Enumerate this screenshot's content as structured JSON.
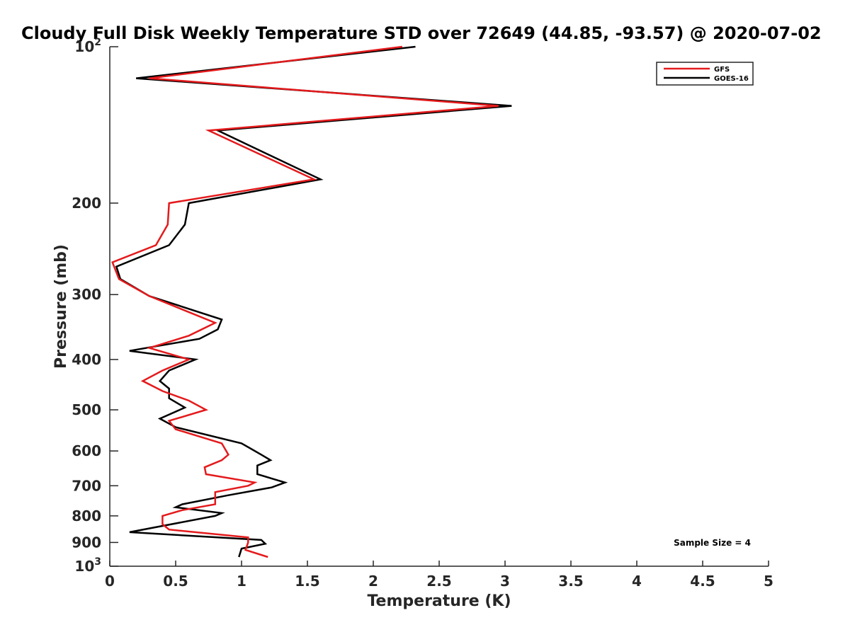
{
  "chart_data": {
    "type": "line",
    "title": "Cloudy Full Disk Weekly Temperature STD over 72649 (44.85, -93.57) @ 2020-07-02",
    "xlabel": "Temperature (K)",
    "ylabel": "Pressure (mb)",
    "xlim": [
      0,
      5
    ],
    "ylim": [
      1000,
      100
    ],
    "yscale": "log",
    "y_reversed": true,
    "xticks": [
      "0",
      "0.5",
      "1",
      "1.5",
      "2",
      "2.5",
      "3",
      "3.5",
      "4",
      "4.5",
      "5"
    ],
    "yticks": [
      {
        "value": 100,
        "base": "10",
        "exp": "2"
      },
      {
        "value": 200,
        "label": "200"
      },
      {
        "value": 300,
        "label": "300"
      },
      {
        "value": 400,
        "label": "400"
      },
      {
        "value": 500,
        "label": "500"
      },
      {
        "value": 600,
        "label": "600"
      },
      {
        "value": 700,
        "label": "700"
      },
      {
        "value": 800,
        "label": "800"
      },
      {
        "value": 900,
        "label": "900"
      },
      {
        "value": 1000,
        "base": "10",
        "exp": "3"
      }
    ],
    "grid": false,
    "legend_position": "top-right",
    "annotation": "Sample Size = 4",
    "series": [
      {
        "name": "GFS",
        "color": "#e41a1c",
        "points": [
          [
            2.22,
            100
          ],
          [
            0.3,
            115
          ],
          [
            2.95,
            130
          ],
          [
            0.75,
            145
          ],
          [
            1.55,
            180
          ],
          [
            0.45,
            200
          ],
          [
            0.44,
            220
          ],
          [
            0.35,
            241
          ],
          [
            0.02,
            260
          ],
          [
            0.07,
            280
          ],
          [
            0.3,
            302
          ],
          [
            0.8,
            340
          ],
          [
            0.6,
            360
          ],
          [
            0.3,
            380
          ],
          [
            0.6,
            400
          ],
          [
            0.4,
            420
          ],
          [
            0.25,
            440
          ],
          [
            0.4,
            460
          ],
          [
            0.6,
            480
          ],
          [
            0.73,
            500
          ],
          [
            0.45,
            525
          ],
          [
            0.5,
            545
          ],
          [
            0.85,
            580
          ],
          [
            0.9,
            610
          ],
          [
            0.85,
            625
          ],
          [
            0.72,
            645
          ],
          [
            0.73,
            665
          ],
          [
            1.1,
            690
          ],
          [
            1.05,
            700
          ],
          [
            0.8,
            720
          ],
          [
            0.8,
            740
          ],
          [
            0.8,
            760
          ],
          [
            0.55,
            780
          ],
          [
            0.4,
            800
          ],
          [
            0.4,
            830
          ],
          [
            0.45,
            850
          ],
          [
            1.05,
            880
          ],
          [
            1.05,
            900
          ],
          [
            1.03,
            930
          ],
          [
            1.2,
            960
          ]
        ]
      },
      {
        "name": "GOES-16",
        "color": "#000000",
        "points": [
          [
            2.32,
            100
          ],
          [
            0.2,
            115
          ],
          [
            3.05,
            130
          ],
          [
            0.82,
            145
          ],
          [
            1.6,
            180
          ],
          [
            0.6,
            200
          ],
          [
            0.57,
            220
          ],
          [
            0.45,
            241
          ],
          [
            0.05,
            265
          ],
          [
            0.08,
            280
          ],
          [
            0.3,
            302
          ],
          [
            0.85,
            335
          ],
          [
            0.82,
            350
          ],
          [
            0.68,
            365
          ],
          [
            0.15,
            385
          ],
          [
            0.65,
            400
          ],
          [
            0.45,
            420
          ],
          [
            0.38,
            440
          ],
          [
            0.45,
            455
          ],
          [
            0.45,
            475
          ],
          [
            0.57,
            495
          ],
          [
            0.38,
            520
          ],
          [
            0.5,
            540
          ],
          [
            1.0,
            580
          ],
          [
            1.15,
            610
          ],
          [
            1.22,
            625
          ],
          [
            1.12,
            640
          ],
          [
            1.12,
            665
          ],
          [
            1.33,
            690
          ],
          [
            1.23,
            705
          ],
          [
            0.9,
            730
          ],
          [
            0.55,
            760
          ],
          [
            0.5,
            770
          ],
          [
            0.85,
            790
          ],
          [
            0.8,
            800
          ],
          [
            0.15,
            860
          ],
          [
            1.15,
            890
          ],
          [
            1.18,
            905
          ],
          [
            1.0,
            925
          ],
          [
            0.98,
            960
          ]
        ]
      }
    ]
  }
}
